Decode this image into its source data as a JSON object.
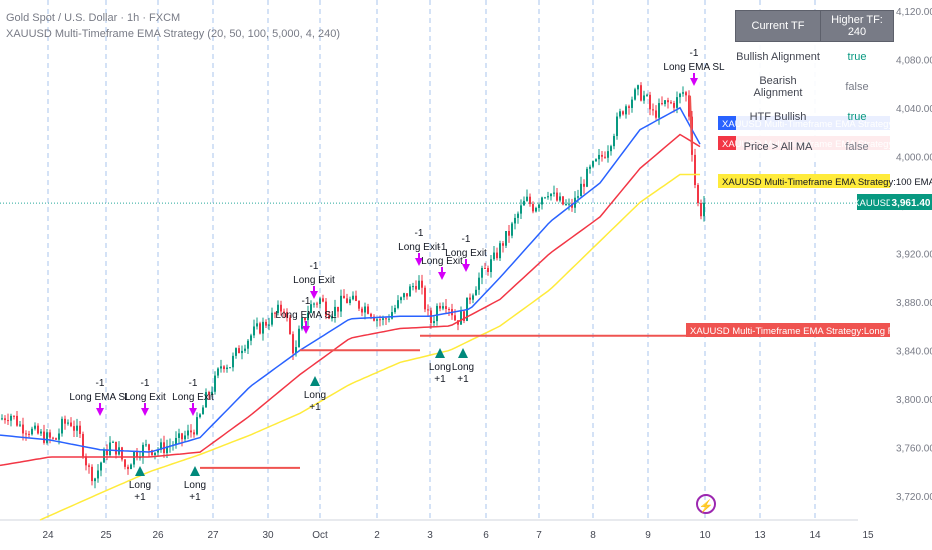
{
  "header": {
    "symbol_line": "Gold Spot / U.S. Dollar · 1h · FXCM",
    "strategy_line": "XAUUSD Multi-Timeframe EMA Strategy (20, 50, 100, 5,000, 4, 240)"
  },
  "tf_table": {
    "col1": "Current TF",
    "col2": "Higher TF: 240",
    "rows": [
      {
        "label": "Bullish Alignment",
        "value": "true",
        "color": "#089981"
      },
      {
        "label": "Bearish Alignment",
        "value": "false",
        "color": "#787b86"
      },
      {
        "label": "HTF Bullish",
        "value": "true",
        "color": "#089981"
      },
      {
        "label": "Price > All MA",
        "value": "false",
        "color": "#787b86"
      }
    ]
  },
  "right_labels": {
    "ema20": "XAUUSD Multi-Timeframe EMA Strategy:20 EMA",
    "ema50": "XAUUSD Multi-Timeframe EMA Strategy:50 EMA",
    "ema100": "XAUUSD Multi-Timeframe EMA Strategy:100 EMA",
    "sl": "XAUUSD Multi-Timeframe EMA Strategy:Long Real-time SL",
    "symbol": "XAUUSD",
    "last_price": "3,961.40"
  },
  "colors": {
    "ema20": "#2962ff",
    "ema50": "#f23645",
    "ema100": "#ffeb3b",
    "up": "#089981",
    "down": "#f23645",
    "long_marker": "#00897b",
    "exit_marker": "#d500f9",
    "sl_line": "#ef5350"
  },
  "annotations": [
    {
      "text": "Long EMA SL",
      "qty": "-1"
    },
    {
      "text": "Long Exit",
      "qty": "-1"
    },
    {
      "text": "Long Exit",
      "qty": "-1"
    },
    {
      "text": "Long",
      "qty": "+1"
    },
    {
      "text": "Long",
      "qty": "+1"
    },
    {
      "text": "Long Exit",
      "qty": "-1"
    },
    {
      "text": "Long EMA SL",
      "qty": "-1"
    },
    {
      "text": "Long",
      "qty": "+1"
    },
    {
      "text": "Long Exit",
      "qty": "-1"
    },
    {
      "text": "Long Exit",
      "qty": "-1"
    },
    {
      "text": "Long Exit",
      "qty": "-1"
    },
    {
      "text": "Long",
      "qty": "+1"
    },
    {
      "text": "Long",
      "qty": "+1"
    },
    {
      "text": "Long EMA SL",
      "qty": "-1"
    }
  ],
  "chart_data": {
    "type": "candlestick",
    "title": "Gold Spot / U.S. Dollar · 1h · FXCM",
    "y_ticks": [
      3720,
      3760,
      3800,
      3840,
      3880,
      3920,
      3960,
      4000,
      4040,
      4080,
      4120
    ],
    "y_tick_labels": [
      "3,720.00",
      "3,760.00",
      "3,800.00",
      "3,840.00",
      "3,880.00",
      "3,920.00",
      "3,960.00",
      "4,000.00",
      "4,040.00",
      "4,080.00",
      "4,120.00"
    ],
    "ylim": [
      3700,
      4124
    ],
    "x_ticks": [
      "24",
      "25",
      "26",
      "27",
      "30",
      "Oct",
      "2",
      "3",
      "6",
      "7",
      "8",
      "9",
      "10",
      "13",
      "14",
      "15"
    ],
    "grid": "vertical dashed",
    "price_anchors": [
      [
        0,
        3783
      ],
      [
        10,
        3788
      ],
      [
        20,
        3778
      ],
      [
        30,
        3774
      ],
      [
        40,
        3770
      ],
      [
        55,
        3765
      ],
      [
        62,
        3778
      ],
      [
        70,
        3782
      ],
      [
        80,
        3768
      ],
      [
        88,
        3742
      ],
      [
        95,
        3735
      ],
      [
        103,
        3752
      ],
      [
        110,
        3762
      ],
      [
        118,
        3758
      ],
      [
        126,
        3742
      ],
      [
        134,
        3755
      ],
      [
        145,
        3760
      ],
      [
        155,
        3758
      ],
      [
        165,
        3760
      ],
      [
        178,
        3765
      ],
      [
        190,
        3772
      ],
      [
        198,
        3780
      ],
      [
        206,
        3800
      ],
      [
        214,
        3812
      ],
      [
        222,
        3830
      ],
      [
        230,
        3828
      ],
      [
        238,
        3840
      ],
      [
        246,
        3848
      ],
      [
        254,
        3855
      ],
      [
        262,
        3860
      ],
      [
        270,
        3866
      ],
      [
        278,
        3872
      ],
      [
        284,
        3876
      ],
      [
        290,
        3852
      ],
      [
        295,
        3835
      ],
      [
        300,
        3858
      ],
      [
        306,
        3870
      ],
      [
        312,
        3878
      ],
      [
        320,
        3882
      ],
      [
        328,
        3872
      ],
      [
        336,
        3874
      ],
      [
        344,
        3882
      ],
      [
        352,
        3880
      ],
      [
        360,
        3877
      ],
      [
        368,
        3875
      ],
      [
        376,
        3867
      ],
      [
        384,
        3864
      ],
      [
        392,
        3872
      ],
      [
        400,
        3880
      ],
      [
        410,
        3890
      ],
      [
        418,
        3898
      ],
      [
        424,
        3880
      ],
      [
        430,
        3862
      ],
      [
        434,
        3868
      ],
      [
        438,
        3878
      ],
      [
        444,
        3882
      ],
      [
        450,
        3876
      ],
      [
        456,
        3864
      ],
      [
        464,
        3870
      ],
      [
        470,
        3885
      ],
      [
        478,
        3898
      ],
      [
        486,
        3907
      ],
      [
        494,
        3915
      ],
      [
        502,
        3928
      ],
      [
        510,
        3938
      ],
      [
        518,
        3952
      ],
      [
        526,
        3964
      ],
      [
        534,
        3958
      ],
      [
        542,
        3968
      ],
      [
        548,
        3972
      ],
      [
        556,
        3964
      ],
      [
        564,
        3960
      ],
      [
        570,
        3957
      ],
      [
        576,
        3964
      ],
      [
        582,
        3977
      ],
      [
        590,
        3988
      ],
      [
        598,
        3996
      ],
      [
        604,
        4002
      ],
      [
        610,
        4012
      ],
      [
        616,
        4026
      ],
      [
        622,
        4038
      ],
      [
        630,
        4047
      ],
      [
        638,
        4053
      ],
      [
        646,
        4048
      ],
      [
        652,
        4034
      ],
      [
        658,
        4038
      ],
      [
        666,
        4044
      ],
      [
        672,
        4043
      ],
      [
        678,
        4047
      ],
      [
        684,
        4054
      ],
      [
        688,
        4045
      ],
      [
        692,
        4006
      ],
      [
        696,
        3968
      ],
      [
        700,
        3952
      ],
      [
        704,
        3962
      ]
    ],
    "ema20_anchors": [
      [
        0,
        3770
      ],
      [
        50,
        3766
      ],
      [
        100,
        3758
      ],
      [
        150,
        3756
      ],
      [
        200,
        3768
      ],
      [
        250,
        3810
      ],
      [
        300,
        3840
      ],
      [
        350,
        3866
      ],
      [
        400,
        3868
      ],
      [
        430,
        3868
      ],
      [
        470,
        3874
      ],
      [
        500,
        3900
      ],
      [
        550,
        3946
      ],
      [
        600,
        3978
      ],
      [
        640,
        4022
      ],
      [
        680,
        4040
      ],
      [
        700,
        4010
      ]
    ],
    "ema50_anchors": [
      [
        0,
        3745
      ],
      [
        50,
        3752
      ],
      [
        100,
        3752
      ],
      [
        150,
        3752
      ],
      [
        200,
        3756
      ],
      [
        250,
        3786
      ],
      [
        300,
        3820
      ],
      [
        350,
        3850
      ],
      [
        400,
        3858
      ],
      [
        450,
        3860
      ],
      [
        500,
        3882
      ],
      [
        550,
        3920
      ],
      [
        600,
        3950
      ],
      [
        640,
        3990
      ],
      [
        680,
        4018
      ],
      [
        700,
        4008
      ]
    ],
    "ema100_anchors": [
      [
        40,
        3700
      ],
      [
        100,
        3722
      ],
      [
        150,
        3740
      ],
      [
        200,
        3754
      ],
      [
        250,
        3770
      ],
      [
        300,
        3788
      ],
      [
        350,
        3812
      ],
      [
        400,
        3830
      ],
      [
        450,
        3840
      ],
      [
        500,
        3860
      ],
      [
        550,
        3890
      ],
      [
        600,
        3930
      ],
      [
        640,
        3962
      ],
      [
        680,
        3985
      ],
      [
        700,
        3985
      ]
    ],
    "sl_segments": [
      [
        200,
        300,
        3743
      ],
      [
        300,
        420,
        3840
      ],
      [
        420,
        470,
        3852
      ],
      [
        470,
        690,
        3852
      ]
    ],
    "last_price": 3961.4
  }
}
